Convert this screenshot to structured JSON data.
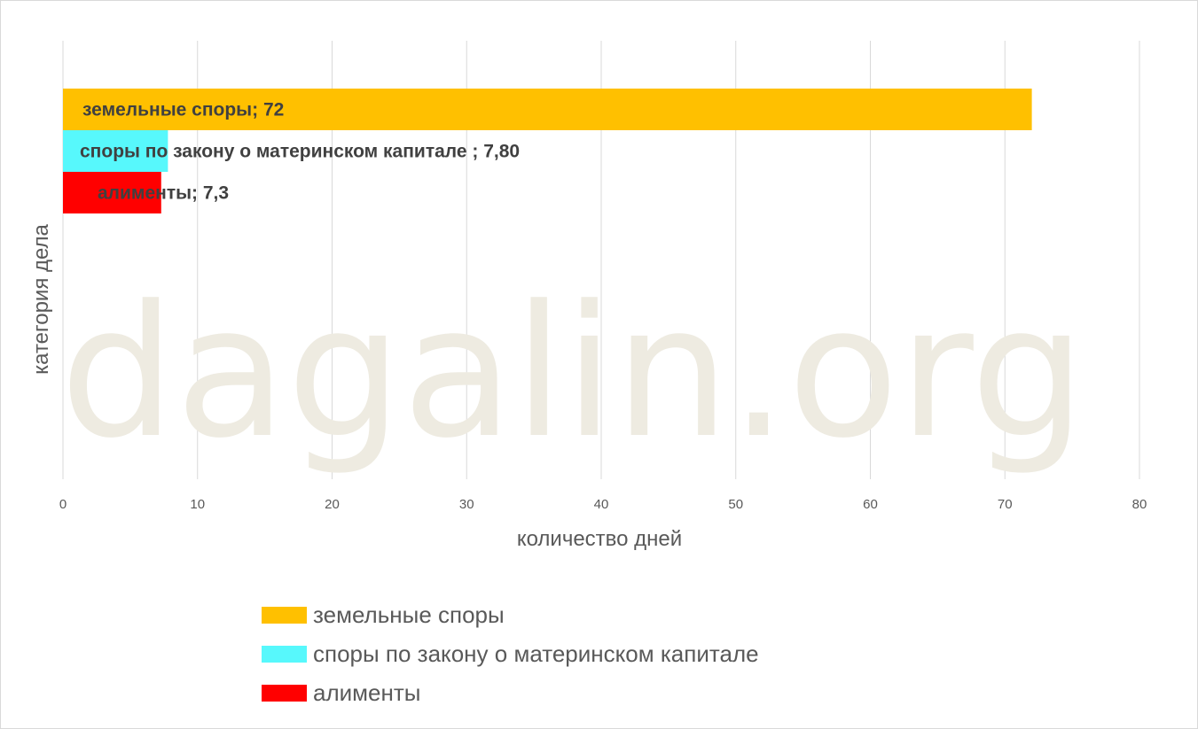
{
  "watermark": "dagalin.org",
  "chart_data": {
    "type": "bar",
    "orientation": "horizontal",
    "xlabel": "количество дней",
    "ylabel": "категория дела",
    "xlim": [
      0,
      80
    ],
    "xticks": [
      0,
      10,
      20,
      30,
      40,
      50,
      60,
      70,
      80
    ],
    "grid": true,
    "legend_position": "bottom",
    "series": [
      {
        "name": "земельные споры",
        "value": 72,
        "label": "земельные споры; 72",
        "color": "#FFC000"
      },
      {
        "name": "споры по закону о материнском капитале",
        "value": 7.8,
        "label": "споры по закону о материнском капитале ; 7,80",
        "color": "#57F8FC"
      },
      {
        "name": "алименты",
        "value": 7.3,
        "label": "алименты; 7,3",
        "color": "#FF0000"
      }
    ]
  }
}
